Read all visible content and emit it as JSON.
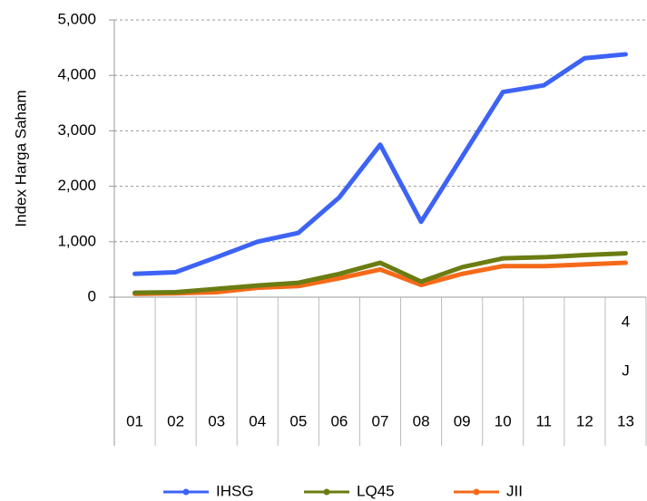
{
  "chart_data": {
    "type": "line",
    "y_label": "Index Harga Saham",
    "categories": [
      "01",
      "02",
      "03",
      "04",
      "05",
      "06",
      "07",
      "08",
      "09",
      "10",
      "11",
      "12",
      "13"
    ],
    "category_annotations": [
      "4",
      "J"
    ],
    "series": [
      {
        "name": "IHSG",
        "color": "#3d63f5",
        "values": [
          420,
          450,
          720,
          1000,
          1160,
          1800,
          2750,
          1360,
          2530,
          3700,
          3820,
          4310,
          4380
        ]
      },
      {
        "name": "LQ45",
        "color": "#6b7d12",
        "values": [
          80,
          90,
          150,
          210,
          260,
          420,
          620,
          280,
          540,
          700,
          720,
          760,
          790
        ]
      },
      {
        "name": "JII",
        "color": "#f56a1a",
        "values": [
          60,
          70,
          90,
          170,
          200,
          340,
          500,
          220,
          420,
          560,
          560,
          590,
          620
        ]
      }
    ],
    "ylim": [
      0,
      5000
    ],
    "yticks": [
      0,
      {
        "value": 1000,
        "label": "1,000"
      },
      {
        "value": 2000,
        "label": "2,000"
      },
      {
        "value": 3000,
        "label": "3,000"
      },
      {
        "value": 4000,
        "label": "4,000"
      },
      {
        "value": 5000,
        "label": "5,000"
      }
    ],
    "grid": true
  }
}
